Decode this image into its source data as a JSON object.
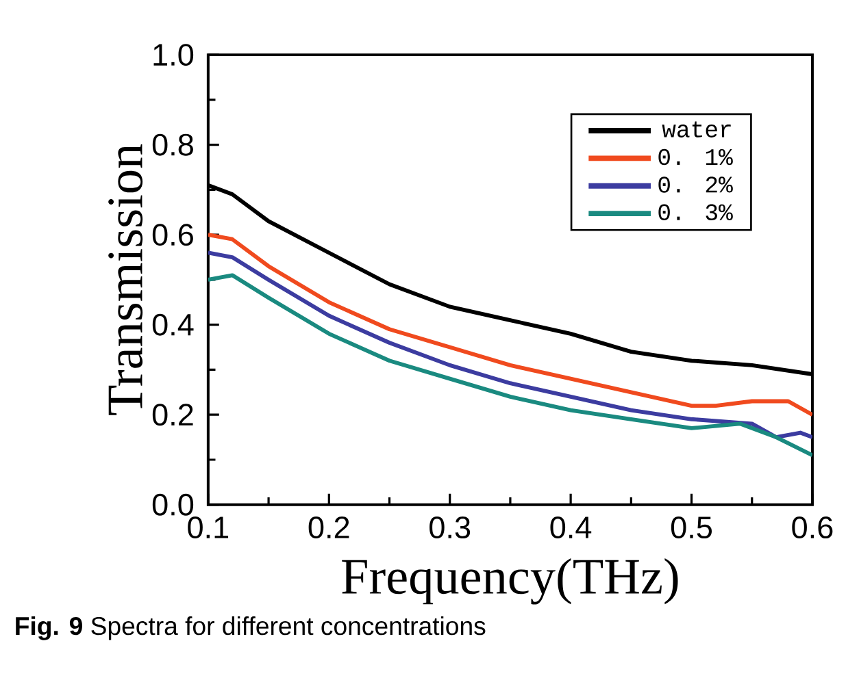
{
  "chart_data": {
    "type": "line",
    "xlabel": "Frequency(THz)",
    "ylabel": "Transmission",
    "annotations": [
      "**Fig. 9** Spectra for different concentrations"
    ],
    "xlim": [
      0.1,
      0.6
    ],
    "xticks": [
      0.1,
      0.2,
      0.3,
      0.4,
      0.5,
      0.6
    ],
    "ylim": [
      0,
      1
    ],
    "yticks": [
      {
        "value": 0,
        "label": "0.0"
      },
      0.2,
      0.4,
      0.6,
      0.8,
      {
        "value": 1,
        "label": "1.0"
      }
    ],
    "legend": "top right",
    "series": [
      {
        "name": "water",
        "color": "#000000",
        "x": [
          0.1,
          0.12,
          0.15,
          0.2,
          0.25,
          0.3,
          0.35,
          0.4,
          0.45,
          0.5,
          0.55,
          0.6
        ],
        "values": [
          0.71,
          0.69,
          0.63,
          0.56,
          0.49,
          0.44,
          0.41,
          0.38,
          0.34,
          0.32,
          0.31,
          0.29
        ]
      },
      {
        "name": "0. 1%",
        "color": "#f04a1e",
        "x": [
          0.1,
          0.12,
          0.15,
          0.2,
          0.25,
          0.3,
          0.35,
          0.4,
          0.45,
          0.5,
          0.52,
          0.55,
          0.58,
          0.6
        ],
        "values": [
          0.6,
          0.59,
          0.53,
          0.45,
          0.39,
          0.35,
          0.31,
          0.28,
          0.25,
          0.22,
          0.22,
          0.23,
          0.23,
          0.2
        ]
      },
      {
        "name": "0. 2%",
        "color": "#3c3ca0",
        "x": [
          0.1,
          0.12,
          0.15,
          0.2,
          0.25,
          0.3,
          0.35,
          0.4,
          0.45,
          0.5,
          0.55,
          0.57,
          0.59,
          0.6
        ],
        "values": [
          0.56,
          0.55,
          0.5,
          0.42,
          0.36,
          0.31,
          0.27,
          0.24,
          0.21,
          0.19,
          0.18,
          0.15,
          0.16,
          0.15
        ]
      },
      {
        "name": "0. 3%",
        "color": "#1a8a80",
        "x": [
          0.1,
          0.12,
          0.15,
          0.2,
          0.25,
          0.3,
          0.35,
          0.4,
          0.45,
          0.5,
          0.54,
          0.57,
          0.6
        ],
        "values": [
          0.5,
          0.51,
          0.46,
          0.38,
          0.32,
          0.28,
          0.24,
          0.21,
          0.19,
          0.17,
          0.18,
          0.15,
          0.11
        ]
      }
    ]
  }
}
